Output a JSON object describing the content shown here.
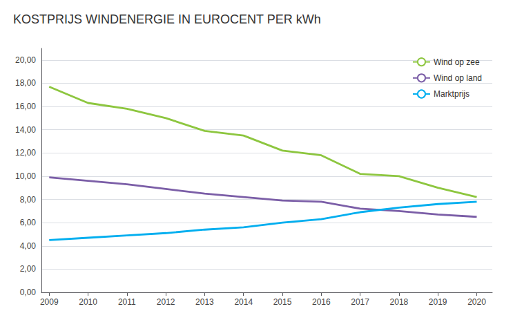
{
  "chart_data": {
    "type": "line",
    "title": "KOSTPRIJS WINDENERGIE IN EUROCENT PER kWh",
    "x": [
      2009,
      2010,
      2011,
      2012,
      2013,
      2014,
      2015,
      2016,
      2017,
      2018,
      2019,
      2020
    ],
    "series": [
      {
        "name": "Wind op zee",
        "color": "#8dc63f",
        "values": [
          17.7,
          16.3,
          15.8,
          15.0,
          13.9,
          13.5,
          12.2,
          11.8,
          10.2,
          10.0,
          9.0,
          8.2
        ]
      },
      {
        "name": "Wind op land",
        "color": "#7b5ea7",
        "values": [
          9.9,
          9.6,
          9.3,
          8.9,
          8.5,
          8.2,
          7.9,
          7.8,
          7.2,
          7.0,
          6.7,
          6.5
        ]
      },
      {
        "name": "Marktprijs",
        "color": "#00aeef",
        "values": [
          4.5,
          4.7,
          4.9,
          5.1,
          5.4,
          5.6,
          6.0,
          6.3,
          6.9,
          7.3,
          7.6,
          7.8
        ]
      }
    ],
    "xlim": [
      2008.8,
      2020.4
    ],
    "xticks": [
      2009,
      2010,
      2011,
      2012,
      2013,
      2014,
      2015,
      2016,
      2017,
      2018,
      2019,
      2020
    ],
    "ylim": [
      0,
      21
    ],
    "yticks": [
      {
        "value": 0,
        "label": "0,00"
      },
      {
        "value": 2,
        "label": "2,00"
      },
      {
        "value": 4,
        "label": "4,00"
      },
      {
        "value": 6,
        "label": "6,00"
      },
      {
        "value": 8,
        "label": "8,00"
      },
      {
        "value": 10,
        "label": "10,00"
      },
      {
        "value": 12,
        "label": "12,00"
      },
      {
        "value": 14,
        "label": "14,00"
      },
      {
        "value": 16,
        "label": "16,00"
      },
      {
        "value": 18,
        "label": "18,00"
      },
      {
        "value": 20,
        "label": "20,00"
      }
    ],
    "grid": true,
    "legend": "upper right"
  }
}
